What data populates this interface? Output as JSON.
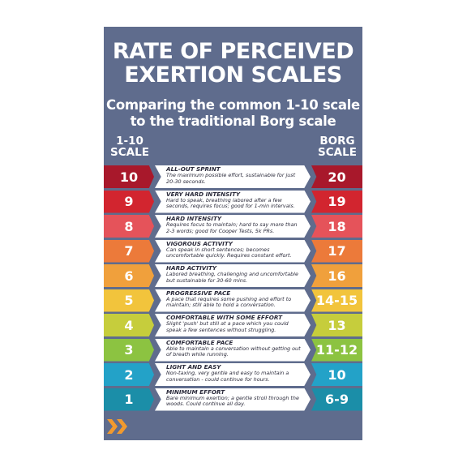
{
  "title": [
    "RATE OF PERCEIVED",
    "EXERTION SCALES"
  ],
  "subtitle": [
    "Comparing the common 1-10 scale",
    "to the traditional Borg scale"
  ],
  "left_header": [
    "1-10",
    "SCALE"
  ],
  "right_header": [
    "BORG",
    "SCALE"
  ],
  "rows": [
    {
      "scale": "10",
      "heading": "ALL-OUT SPRINT",
      "description": "The maximum possible effort, sustainable for just 20-30 seconds.",
      "borg": "20"
    },
    {
      "scale": "9",
      "heading": "VERY HARD INTENSITY",
      "description": "Hard to speak, breathing labored after a few seconds, requires focus; good for 1-min intervals.",
      "borg": "19"
    },
    {
      "scale": "8",
      "heading": "HARD INTENSITY",
      "description": "Requires focus to maintain; hard to say more than 2-3 words; good for Cooper Tests, 5k PRs.",
      "borg": "18"
    },
    {
      "scale": "7",
      "heading": "VIGOROUS ACTIVITY",
      "description": "Can speak in short sentences; becomes uncomfortable quickly. Requires constant effort.",
      "borg": "17"
    },
    {
      "scale": "6",
      "heading": "HARD ACTIVITY",
      "description": "Labored breathing, challenging and uncomfortable but sustainable for 30-60 mins.",
      "borg": "16"
    },
    {
      "scale": "5",
      "heading": "PROGRESSIVE PACE",
      "description": "A pace that requires some pushing and effort to maintain; still able to hold a conversation.",
      "borg": "14-15"
    },
    {
      "scale": "4",
      "heading": "COMFORTABLE WITH SOME EFFORT",
      "description": "Slight 'push' but still at a pace which you could speak a few sentences without struggling.",
      "borg": "13"
    },
    {
      "scale": "3",
      "heading": "COMFORTABLE PACE",
      "description": "Able to maintain a conversation without getting out of breath while running.",
      "borg": "11-12"
    },
    {
      "scale": "2",
      "heading": "LIGHT AND EASY",
      "description": "Non-taxing, very gentle and easy to maintain a conversation - could continue for hours.",
      "borg": "10"
    },
    {
      "scale": "1",
      "heading": "MINIMUM EFFORT",
      "description": "Bare minimum exertion; a gentle stroll through the woods. Could continue all day.",
      "borg": "6-9"
    }
  ]
}
